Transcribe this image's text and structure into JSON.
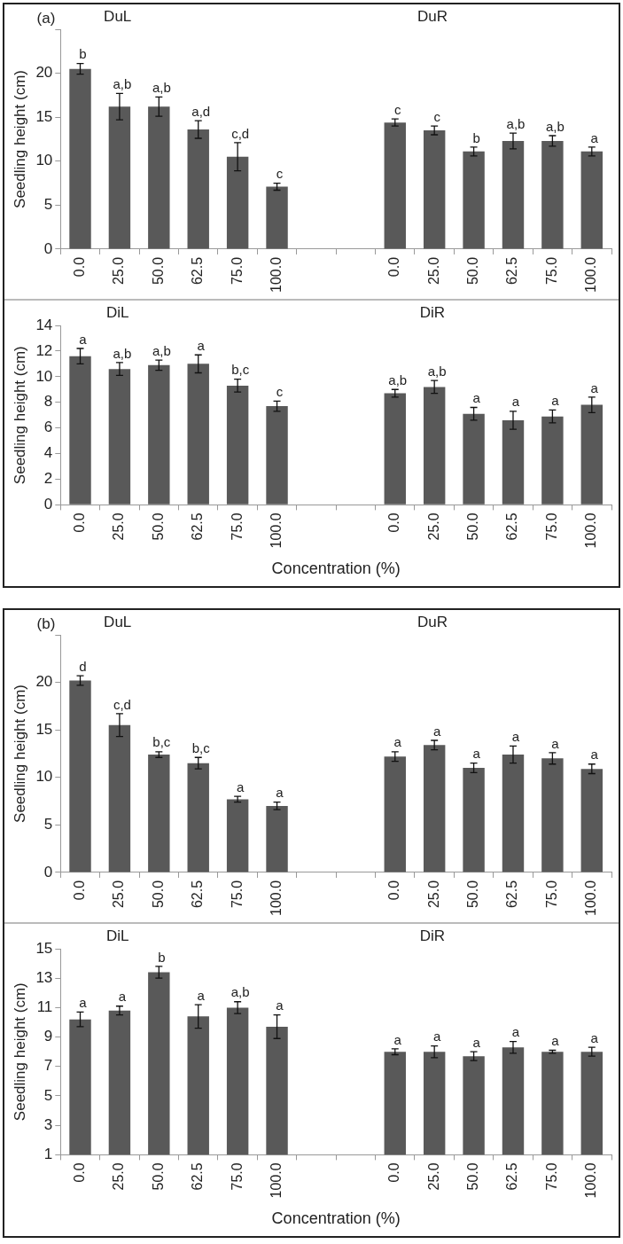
{
  "chart_data": [
    {
      "type": "bar",
      "ylabel": "Seedling height (cm)",
      "annotations": [
        "(a)",
        "DuL",
        "DuR"
      ],
      "categories": [
        "0.0",
        "25.0",
        "50.0",
        "62.5",
        "75.0",
        "100.0",
        null,
        null,
        "0.0",
        "25.0",
        "50.0",
        "62.5",
        "75.0",
        "100.0"
      ],
      "color": "#595959",
      "ylim": [
        0,
        25
      ],
      "yticks": [
        0,
        5,
        10,
        15,
        20,
        {
          "value": 25,
          "label": null
        }
      ],
      "grid": false,
      "values": [
        20.5,
        16.2,
        16.2,
        13.6,
        10.5,
        7.1,
        null,
        null,
        14.4,
        13.5,
        11.1,
        12.3,
        12.3,
        11.1
      ],
      "errors": [
        0.6,
        1.5,
        1.1,
        1.0,
        1.6,
        0.4,
        null,
        null,
        0.4,
        0.5,
        0.5,
        0.9,
        0.6,
        0.5
      ],
      "value_labels": [
        "b",
        "a,b",
        "a,b",
        "a,d",
        "c,d",
        "c",
        null,
        null,
        "c",
        "c",
        "b",
        "a,b",
        "a,b",
        "a"
      ]
    },
    {
      "type": "bar",
      "ylabel": "Seedling height (cm)",
      "xlabel": "Concentration (%)",
      "annotations": [
        "DiL",
        "DiR"
      ],
      "categories": [
        "0.0",
        "25.0",
        "50.0",
        "62.5",
        "75.0",
        "100.0",
        null,
        null,
        "0.0",
        "25.0",
        "50.0",
        "62.5",
        "75.0",
        "100.0"
      ],
      "color": "#595959",
      "ylim": [
        0,
        14
      ],
      "yticks": [
        0,
        2,
        4,
        6,
        8,
        10,
        12,
        14
      ],
      "grid": false,
      "values": [
        11.6,
        10.6,
        10.9,
        11.0,
        9.3,
        7.7,
        null,
        null,
        8.7,
        9.2,
        7.1,
        6.6,
        6.9,
        7.8
      ],
      "errors": [
        0.6,
        0.5,
        0.4,
        0.7,
        0.5,
        0.4,
        null,
        null,
        0.3,
        0.5,
        0.5,
        0.7,
        0.5,
        0.6
      ],
      "value_labels": [
        "a",
        "a,b",
        "a,b",
        "a",
        "b,c",
        "c",
        null,
        null,
        "a,b",
        "a,b",
        "a",
        "a",
        "a",
        "a"
      ]
    },
    {
      "type": "bar",
      "ylabel": "Seedling height (cm)",
      "annotations": [
        "(b)",
        "DuL",
        "DuR"
      ],
      "categories": [
        "0.0",
        "25.0",
        "50.0",
        "62.5",
        "75.0",
        "100.0",
        null,
        null,
        "0.0",
        "25.0",
        "50.0",
        "62.5",
        "75.0",
        "100.0"
      ],
      "color": "#595959",
      "ylim": [
        0,
        25
      ],
      "yticks": [
        0,
        5,
        10,
        15,
        20,
        {
          "value": 25,
          "label": null
        }
      ],
      "grid": false,
      "values": [
        20.2,
        15.5,
        12.4,
        11.5,
        7.7,
        7.0,
        null,
        null,
        12.2,
        13.4,
        11.0,
        12.4,
        12.0,
        10.9
      ],
      "errors": [
        0.5,
        1.2,
        0.3,
        0.6,
        0.3,
        0.4,
        null,
        null,
        0.5,
        0.5,
        0.5,
        0.9,
        0.6,
        0.5
      ],
      "value_labels": [
        "d",
        "c,d",
        "b,c",
        "b,c",
        "a",
        "a",
        null,
        null,
        "a",
        "a",
        "a",
        "a",
        "a",
        "a"
      ]
    },
    {
      "type": "bar",
      "ylabel": "Seedling height (cm)",
      "xlabel": "Concentration (%)",
      "annotations": [
        "DiL",
        "DiR"
      ],
      "categories": [
        "0.0",
        "25.0",
        "50.0",
        "62.5",
        "75.0",
        "100.0",
        null,
        null,
        "0.0",
        "25.0",
        "50.0",
        "62.5",
        "75.0",
        "100.0"
      ],
      "color": "#595959",
      "ylim": [
        1,
        15
      ],
      "yticks": [
        1,
        3,
        5,
        7,
        9,
        11,
        13,
        15
      ],
      "grid": false,
      "values": [
        10.2,
        10.8,
        13.4,
        10.4,
        11.0,
        9.7,
        null,
        null,
        8.0,
        8.0,
        7.7,
        8.3,
        8.0,
        8.0
      ],
      "errors": [
        0.5,
        0.3,
        0.4,
        0.8,
        0.4,
        0.8,
        null,
        null,
        0.2,
        0.4,
        0.3,
        0.4,
        0.1,
        0.3
      ],
      "value_labels": [
        "a",
        "a",
        "b",
        "a",
        "a,b",
        "a",
        null,
        null,
        "a",
        "a",
        "a",
        "a",
        "a",
        "a"
      ]
    }
  ]
}
